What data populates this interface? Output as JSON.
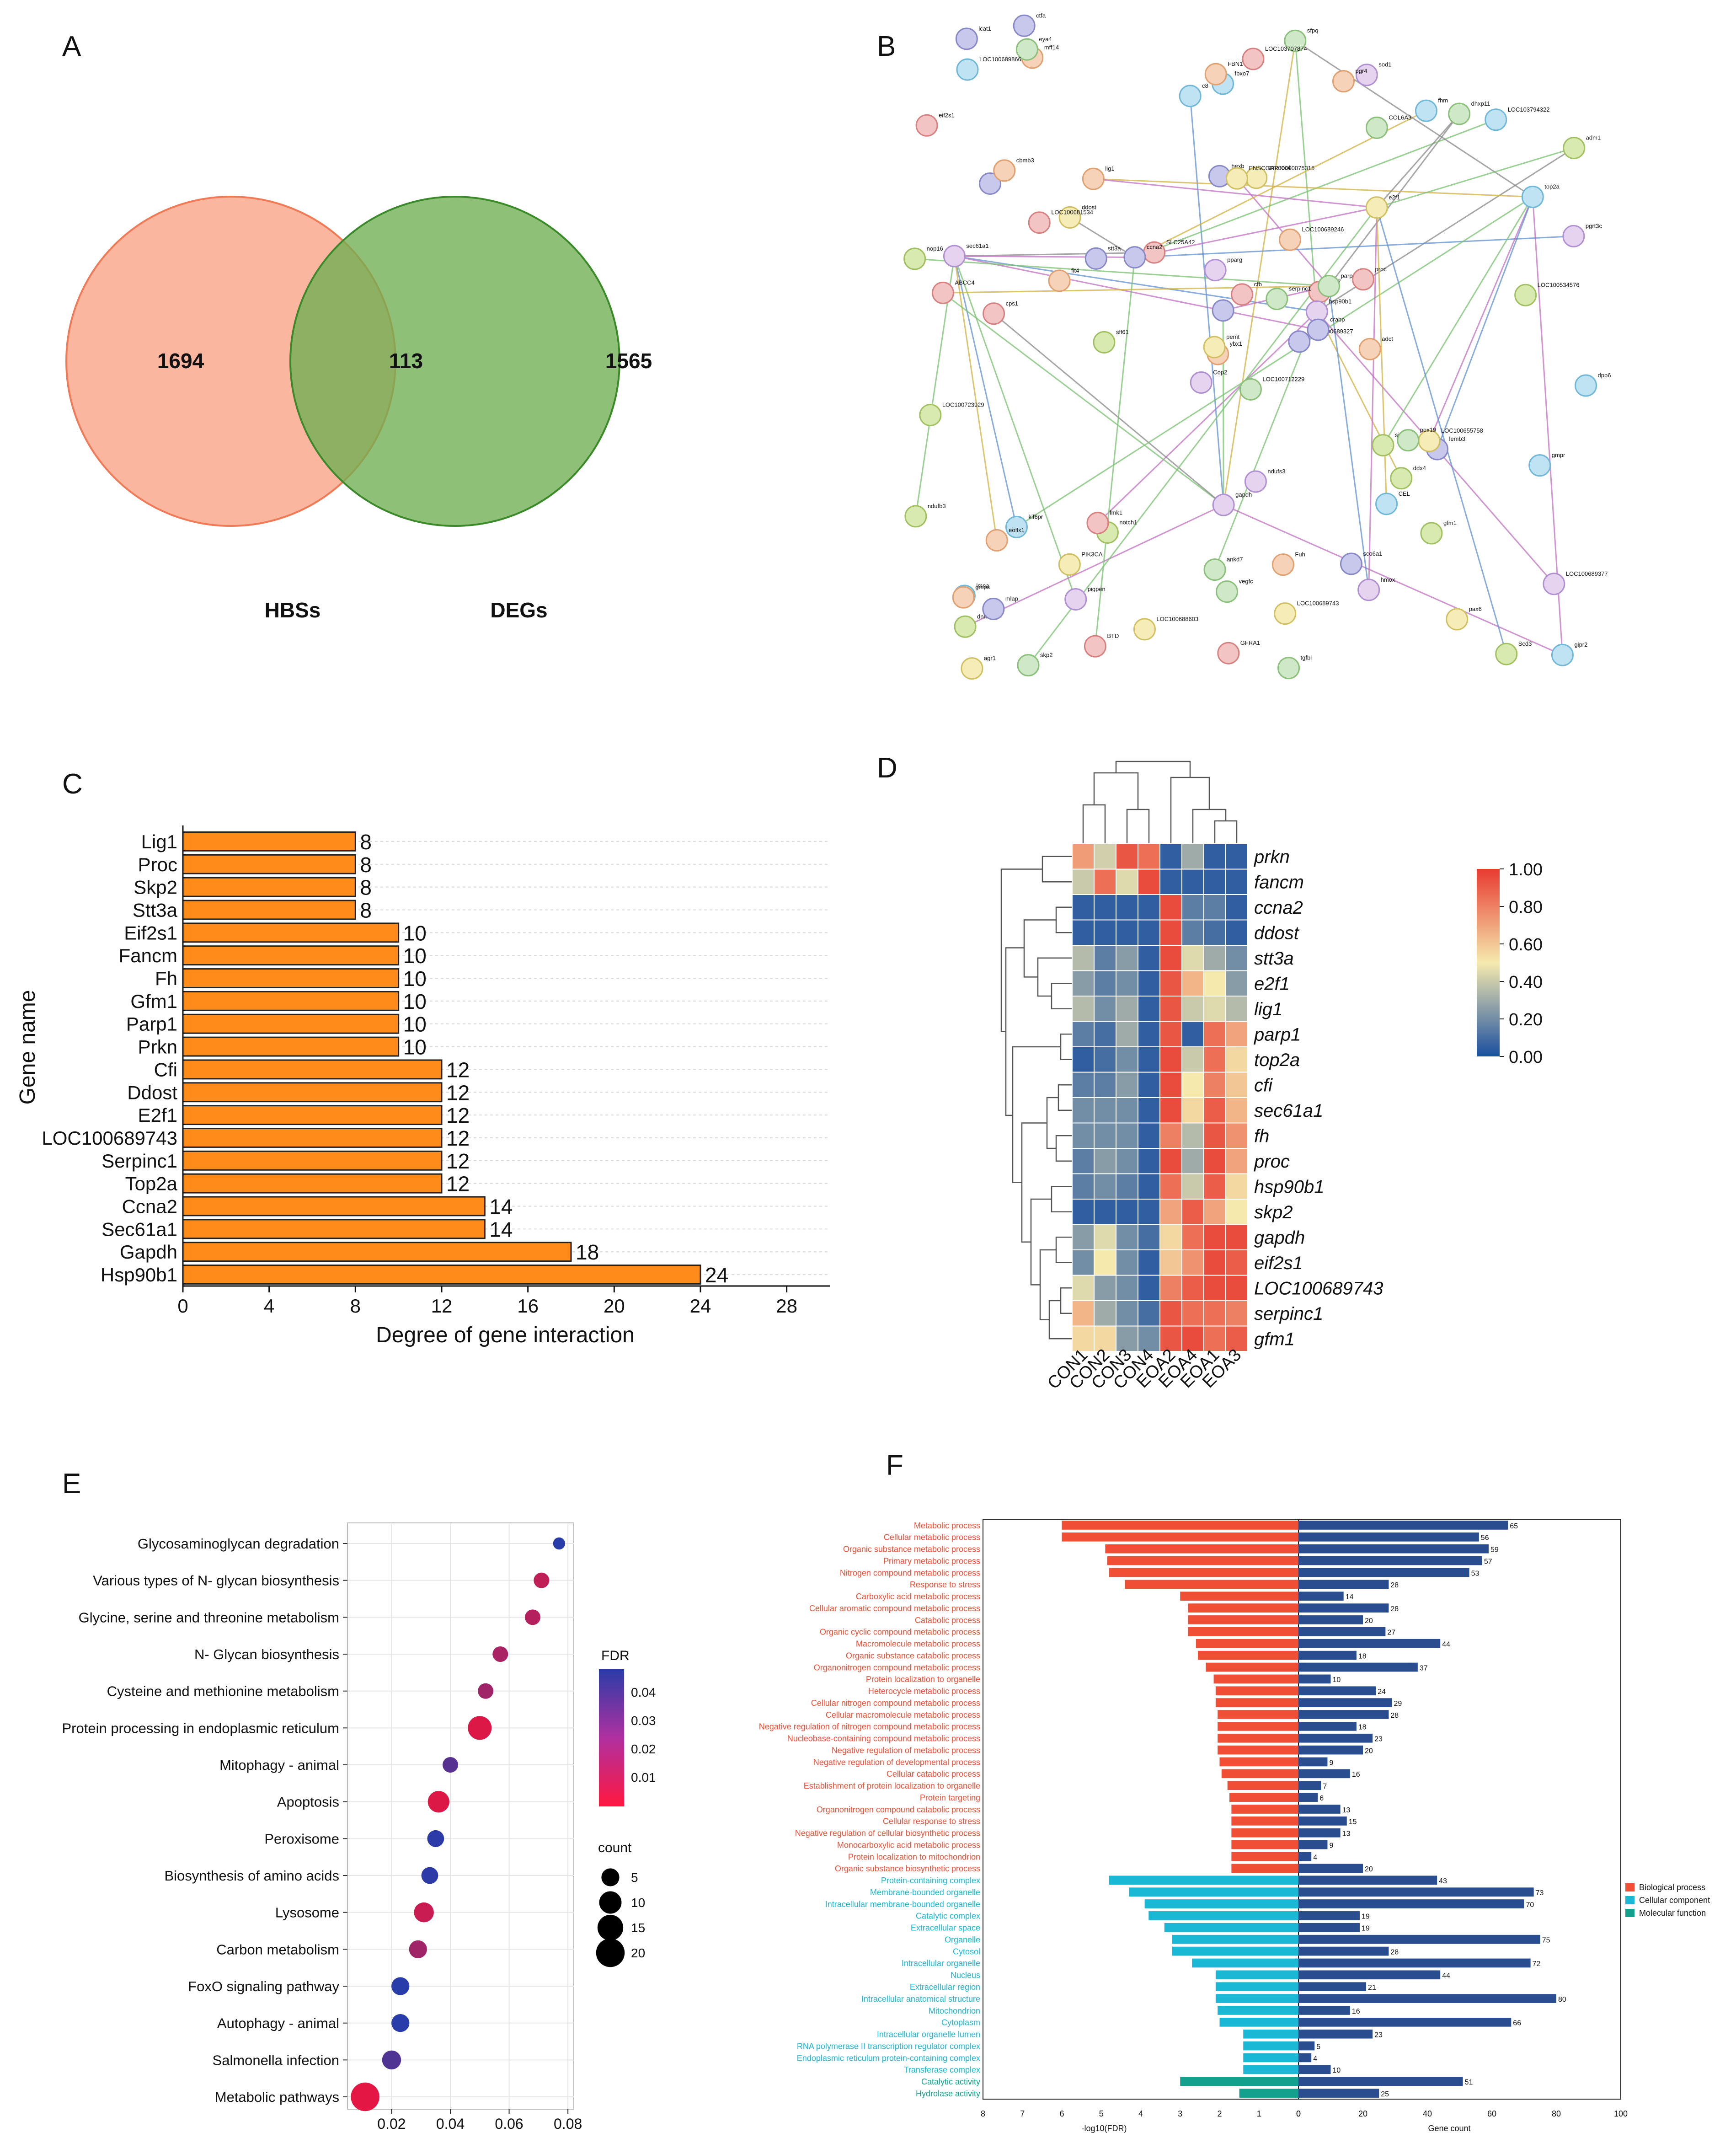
{
  "panels": {
    "A": {
      "label": "A",
      "venn": {
        "left_only": "1694",
        "overlap": "113",
        "right_only": "1565",
        "left_label": "HBSs",
        "right_label": "DEGs"
      }
    },
    "B": {
      "label": "B",
      "node_labels": [
        "LOC100712229",
        "eif2",
        "ybx1",
        "lmna",
        "tcf7",
        "notch1",
        "sod1",
        "smarcc4",
        "COL6A3",
        "LOC100689327",
        "mff14",
        "gipr2",
        "cps1",
        "adm1",
        "Cop2",
        "e2f1",
        "skp2",
        "hexb",
        "LOC100689246",
        "kif6pr",
        "SLC25A42",
        "dnmt1",
        "pigpen",
        "ENSCGRP00000075315",
        "parp1",
        "lemb3",
        "cbmb3",
        "fbxo7",
        "ABCC4",
        "sigmar1",
        "pgrt3c",
        "pemt",
        "ankd7",
        "fancm",
        "lig1",
        "fhm",
        "fmk1",
        "Scd3",
        "LOC100689377",
        "LOC100655758",
        "sfpq",
        "ccna2",
        "fit4",
        "CEL",
        "BTD",
        "nop16",
        "hsp90b1",
        "agr1",
        "vegfc",
        "crabp",
        "eoflx1",
        "top2a",
        "eif2s1",
        "ddx4",
        "hmox",
        "PIK3CA",
        "eya4",
        "lcat1",
        "Fuh",
        "LOC103794322",
        "LOC103707874",
        "sff61",
        "sec61a1",
        "ddost",
        "dhxp11",
        "ctfa",
        "pgr4",
        "c8",
        "cfb",
        "ndufb3",
        "gapdh",
        "LOC100688603",
        "pex19",
        "stt3a",
        "gmps",
        "LOC100689866",
        "LOC100681534",
        "LOC100723929",
        "pparg",
        "LOC100689743",
        "serpinc1",
        "mlap",
        "adct",
        "gmpr",
        "GFRA1",
        "LOC100534576",
        "ndufs3",
        "pax6",
        "tgfbi",
        "sco6a1",
        "FBN1",
        "dpp6",
        "proc",
        "gfm1"
      ]
    },
    "C": {
      "label": "C",
      "chart_data": {
        "type": "bar",
        "orientation": "horizontal",
        "categories": [
          "Lig1",
          "Proc",
          "Skp2",
          "Stt3a",
          "Eif2s1",
          "Fancm",
          "Fh",
          "Gfm1",
          "Parp1",
          "Prkn",
          "Cfi",
          "Ddost",
          "E2f1",
          "LOC100689743",
          "Serpinc1",
          "Top2a",
          "Ccna2",
          "Sec61a1",
          "Gapdh",
          "Hsp90b1"
        ],
        "values": [
          8,
          8,
          8,
          8,
          10,
          10,
          10,
          10,
          10,
          10,
          12,
          12,
          12,
          12,
          12,
          12,
          14,
          14,
          18,
          24
        ],
        "xlabel": "Degree of gene interaction",
        "ylabel": "Gene name",
        "xlim": [
          0,
          30
        ],
        "xticks": [
          0,
          4,
          8,
          12,
          16,
          20,
          24,
          28
        ],
        "bar_color": "#ff8c1a",
        "data_labels": true
      }
    },
    "D": {
      "label": "D",
      "chart_data": {
        "type": "heatmap",
        "columns": [
          "CON1",
          "CON2",
          "CON3",
          "CON4",
          "EOA2",
          "EOA4",
          "EOA1",
          "EOA3"
        ],
        "rows": [
          "prkn",
          "fancm",
          "ccna2",
          "ddost",
          "stt3a",
          "e2f1",
          "lig1",
          "parp1",
          "top2a",
          "cfi",
          "sec61a1",
          "fh",
          "proc",
          "hsp90b1",
          "skp2",
          "gapdh",
          "eif2s1",
          "LOC100689743",
          "serpinc1",
          "gfm1"
        ],
        "values": [
          [
            0.72,
            0.42,
            0.92,
            0.85,
            0.05,
            0.3,
            0.05,
            0.05
          ],
          [
            0.4,
            0.85,
            0.45,
            0.95,
            0.05,
            0.05,
            0.05,
            0.05
          ],
          [
            0.05,
            0.05,
            0.05,
            0.05,
            0.95,
            0.15,
            0.15,
            0.05
          ],
          [
            0.05,
            0.05,
            0.05,
            0.05,
            0.95,
            0.15,
            0.1,
            0.05
          ],
          [
            0.35,
            0.15,
            0.25,
            0.05,
            0.95,
            0.45,
            0.3,
            0.2
          ],
          [
            0.25,
            0.15,
            0.2,
            0.05,
            0.92,
            0.65,
            0.5,
            0.25
          ],
          [
            0.35,
            0.2,
            0.3,
            0.05,
            0.92,
            0.4,
            0.45,
            0.35
          ],
          [
            0.15,
            0.1,
            0.3,
            0.05,
            0.92,
            0.05,
            0.85,
            0.7
          ],
          [
            0.05,
            0.1,
            0.2,
            0.05,
            0.95,
            0.4,
            0.85,
            0.55
          ],
          [
            0.15,
            0.15,
            0.25,
            0.05,
            0.95,
            0.5,
            0.8,
            0.6
          ],
          [
            0.2,
            0.2,
            0.2,
            0.05,
            0.95,
            0.55,
            0.9,
            0.65
          ],
          [
            0.2,
            0.2,
            0.2,
            0.05,
            0.8,
            0.35,
            0.92,
            0.75
          ],
          [
            0.15,
            0.25,
            0.2,
            0.05,
            0.95,
            0.3,
            0.95,
            0.7
          ],
          [
            0.15,
            0.2,
            0.15,
            0.05,
            0.85,
            0.4,
            0.9,
            0.55
          ],
          [
            0.05,
            0.05,
            0.05,
            0.05,
            0.7,
            0.9,
            0.7,
            0.5
          ],
          [
            0.25,
            0.45,
            0.2,
            0.1,
            0.55,
            0.85,
            0.95,
            0.95
          ],
          [
            0.2,
            0.5,
            0.2,
            0.05,
            0.6,
            0.75,
            0.95,
            0.9
          ],
          [
            0.45,
            0.25,
            0.2,
            0.05,
            0.8,
            0.9,
            0.95,
            0.95
          ],
          [
            0.65,
            0.3,
            0.2,
            0.1,
            0.92,
            0.85,
            0.85,
            0.8
          ],
          [
            0.55,
            0.55,
            0.25,
            0.2,
            0.92,
            0.95,
            0.85,
            0.9
          ]
        ],
        "scale": {
          "min": 0,
          "max": 1,
          "ticks": [
            "1.00",
            "0.80",
            "0.60",
            "0.40",
            "0.20",
            "0.00"
          ],
          "colors": [
            "#1b4fa0",
            "#f5e9ae",
            "#e83a30"
          ]
        }
      }
    },
    "E": {
      "label": "E",
      "chart_data": {
        "type": "scatter",
        "categories": [
          "Glycosaminoglycan degradation",
          "Various types of N- glycan biosynthesis",
          "Glycine, serine and threonine metabolism",
          "N- Glycan biosynthesis",
          "Cysteine and methionine metabolism",
          "Protein processing in endoplasmic reticulum",
          "Mitophagy -  animal",
          "Apoptosis",
          "Peroxisome",
          "Biosynthesis of amino acids",
          "Lysosome",
          "Carbon metabolism",
          "FoxO signaling pathway",
          "Autophagy -  animal",
          "Salmonella infection",
          "Metabolic pathways"
        ],
        "x": [
          0.077,
          0.071,
          0.068,
          0.057,
          0.052,
          0.05,
          0.04,
          0.036,
          0.035,
          0.033,
          0.031,
          0.029,
          0.023,
          0.023,
          0.02,
          0.011
        ],
        "count": [
          1,
          3,
          3,
          3,
          3,
          12,
          3,
          9,
          4,
          4,
          7,
          5,
          5,
          5,
          6,
          20
        ],
        "fdr": [
          0.05,
          0.012,
          0.015,
          0.018,
          0.02,
          0.005,
          0.038,
          0.005,
          0.049,
          0.049,
          0.01,
          0.02,
          0.05,
          0.05,
          0.04,
          0.003
        ],
        "xlim": [
          0.005,
          0.082
        ],
        "xticks": [
          "0.02",
          "0.04",
          "0.06",
          "0.08"
        ],
        "legend_fdr": {
          "title": "FDR",
          "ticks": [
            "0.04",
            "0.03",
            "0.02",
            "0.01"
          ]
        },
        "legend_count": {
          "title": "count",
          "ticks": [
            "5",
            "10",
            "15",
            "20"
          ]
        }
      }
    },
    "F": {
      "label": "F",
      "chart_data": {
        "type": "bar",
        "orientation": "horizontal-diverging",
        "terms": [
          "Metabolic process",
          "Cellular metabolic process",
          "Organic substance metabolic process",
          "Primary metabolic process",
          "Nitrogen compound metabolic process",
          "Response to stress",
          "Carboxylic acid metabolic process",
          "Cellular aromatic compound metabolic process",
          "Catabolic process",
          "Organic cyclic compound metabolic process",
          "Macromolecule metabolic process",
          "Organic substance catabolic process",
          "Organonitrogen compound metabolic process",
          "Protein localization to organelle",
          "Heterocycle metabolic process",
          "Cellular nitrogen compound metabolic process",
          "Cellular macromolecule metabolic process",
          "Negative regulation of nitrogen compound metabolic process",
          "Nucleobase-containing compound metabolic process",
          "Negative regulation of metabolic process",
          "Negative regulation of developmental process",
          "Cellular catabolic process",
          "Establishment of protein localization to organelle",
          "Protein targeting",
          "Organonitrogen compound catabolic process",
          "Cellular response to stress",
          "Negative regulation of cellular biosynthetic process",
          "Monocarboxylic acid metabolic process",
          "Protein localization to mitochondrion",
          "Organic substance biosynthetic process",
          "Protein-containing complex",
          "Membrane-bounded organelle",
          "Intracellular membrane-bounded organelle",
          "Catalytic complex",
          "Extracellular space",
          "Organelle",
          "Cytosol",
          "Intracellular organelle",
          "Nucleus",
          "Extracellular region",
          "Intracellular anatomical structure",
          "Mitochondrion",
          "Cytoplasm",
          "Intracellular organelle lumen",
          "RNA polymerase II transcription regulator complex",
          "Endoplasmic reticulum protein-containing complex",
          "Transferase complex",
          "Catalytic activity",
          "Hydrolase activity"
        ],
        "category": [
          "BP",
          "BP",
          "BP",
          "BP",
          "BP",
          "BP",
          "BP",
          "BP",
          "BP",
          "BP",
          "BP",
          "BP",
          "BP",
          "BP",
          "BP",
          "BP",
          "BP",
          "BP",
          "BP",
          "BP",
          "BP",
          "BP",
          "BP",
          "BP",
          "BP",
          "BP",
          "BP",
          "BP",
          "BP",
          "BP",
          "CC",
          "CC",
          "CC",
          "CC",
          "CC",
          "CC",
          "CC",
          "CC",
          "CC",
          "CC",
          "CC",
          "CC",
          "CC",
          "CC",
          "CC",
          "CC",
          "CC",
          "MF",
          "MF"
        ],
        "neg_log10_fdr": [
          6.0,
          6.0,
          4.9,
          4.85,
          4.8,
          4.4,
          3.0,
          2.8,
          2.8,
          2.8,
          2.6,
          2.55,
          2.35,
          2.15,
          2.1,
          2.1,
          2.05,
          2.05,
          2.05,
          2.05,
          2.0,
          1.95,
          1.8,
          1.75,
          1.7,
          1.7,
          1.7,
          1.7,
          1.7,
          1.7,
          4.8,
          4.3,
          3.9,
          3.8,
          3.4,
          3.2,
          3.2,
          2.7,
          2.1,
          2.1,
          2.1,
          2.05,
          2.0,
          1.4,
          1.4,
          1.4,
          1.4,
          3.0,
          1.5
        ],
        "gene_count": [
          65,
          56,
          59,
          57,
          53,
          28,
          14,
          28,
          20,
          27,
          44,
          18,
          37,
          10,
          24,
          29,
          28,
          18,
          23,
          20,
          9,
          16,
          7,
          6,
          13,
          15,
          13,
          9,
          4,
          20,
          43,
          73,
          70,
          19,
          19,
          75,
          28,
          72,
          44,
          21,
          80,
          16,
          66,
          23,
          5,
          4,
          10,
          51,
          25
        ],
        "xlabel_left": "-log10(FDR)",
        "xlabel_right": "Gene count",
        "left_ticks": [
          "8",
          "7",
          "6",
          "5",
          "4",
          "3",
          "2",
          "1",
          "0"
        ],
        "right_ticks": [
          "0",
          "20",
          "40",
          "60",
          "80",
          "100"
        ],
        "legend": [
          {
            "key": "BP",
            "name": "Biological process",
            "color": "#f04e35"
          },
          {
            "key": "CC",
            "name": "Cellular component",
            "color": "#1ab8d4"
          },
          {
            "key": "MF",
            "name": "Molecular function",
            "color": "#13a08c"
          }
        ],
        "count_bar_color": "#2a4d8f"
      }
    }
  }
}
